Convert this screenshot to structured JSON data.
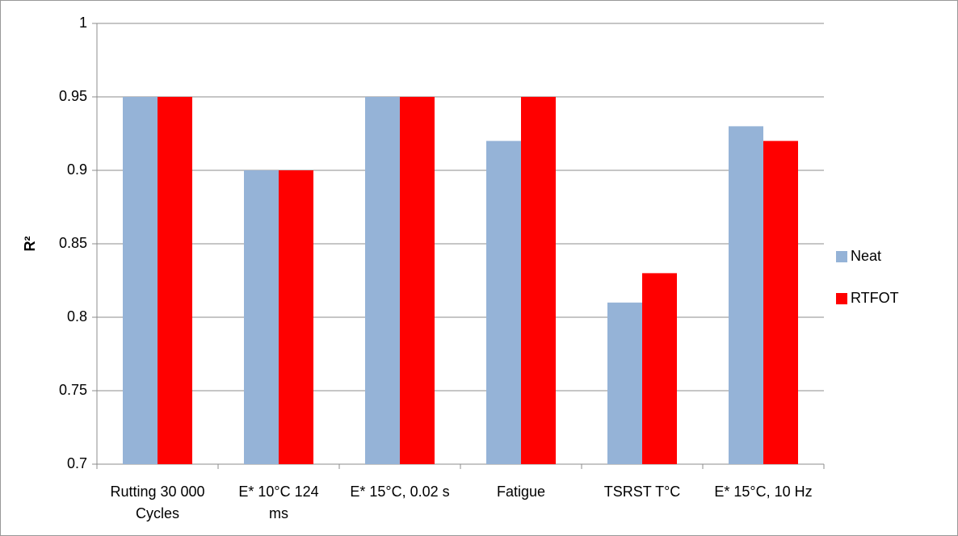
{
  "chart_data": {
    "type": "bar",
    "y_label": "R²",
    "categories": [
      "Rutting 30 000 Cycles",
      "E* 10°C 124 ms",
      "E* 15°C, 0.02 s",
      "Fatigue",
      "TSRST T°C",
      "E* 15°C, 10 Hz"
    ],
    "series": [
      {
        "name": "Neat",
        "color": "#95b3d7",
        "values": [
          0.95,
          0.9,
          0.95,
          0.92,
          0.81,
          0.93
        ]
      },
      {
        "name": "RTFOT",
        "color": "#ff0000",
        "values": [
          0.95,
          0.9,
          0.95,
          0.95,
          0.83,
          0.92
        ]
      }
    ],
    "ylim": [
      0.7,
      1
    ],
    "yticks": [
      0.7,
      0.75,
      0.8,
      0.85,
      0.9,
      0.95,
      1
    ],
    "grid": true,
    "legend": "right"
  }
}
